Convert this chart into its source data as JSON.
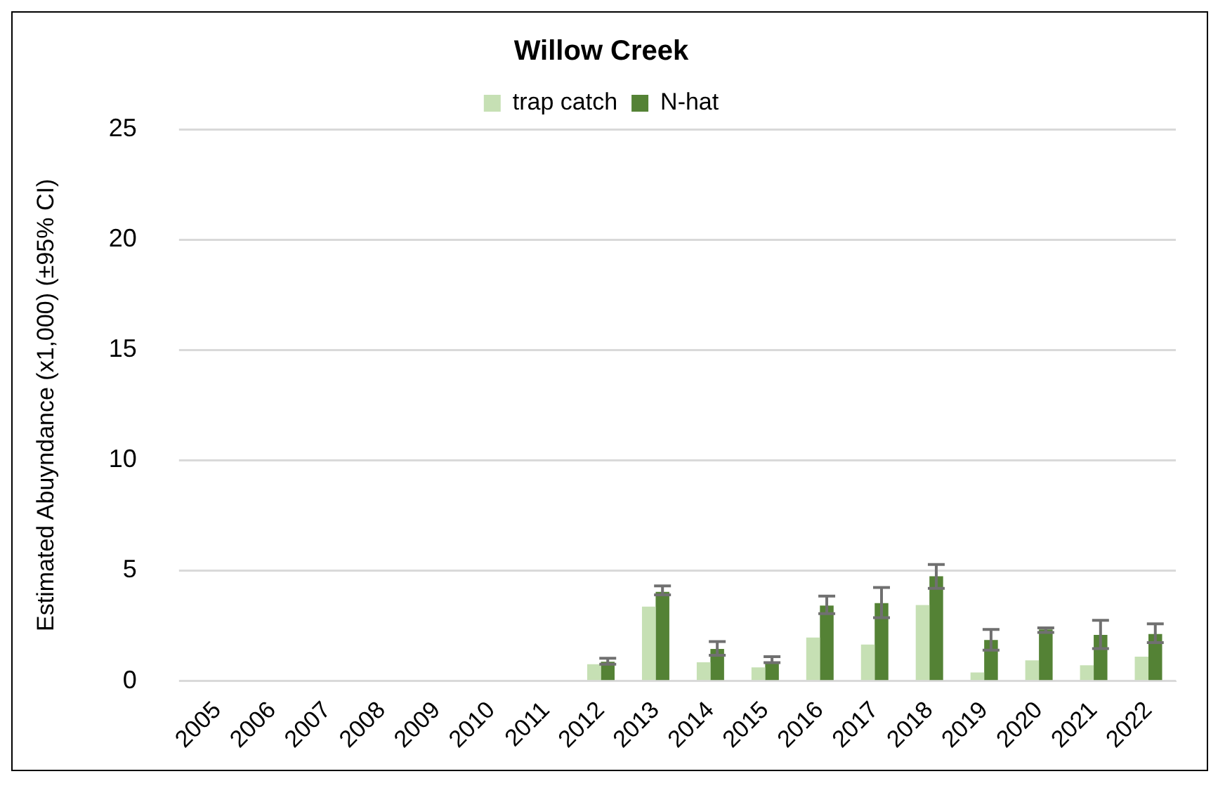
{
  "chart_data": {
    "type": "bar",
    "title": "Willow Creek",
    "ylabel": "Estimated Abuyndance (x1,000) (±95% CI)",
    "categories": [
      "2005",
      "2006",
      "2007",
      "2008",
      "2009",
      "2010",
      "2011",
      "2012",
      "2013",
      "2014",
      "2015",
      "2016",
      "2017",
      "2018",
      "2019",
      "2020",
      "2021",
      "2022"
    ],
    "series": [
      {
        "name": "trap catch",
        "color": "#c6e0b4",
        "values": [
          null,
          null,
          null,
          null,
          null,
          null,
          null,
          0.76,
          3.37,
          0.85,
          0.62,
          1.97,
          1.65,
          3.44,
          0.39,
          0.94,
          0.71,
          1.1
        ]
      },
      {
        "name": "N-hat",
        "color": "#548235",
        "values": [
          null,
          null,
          null,
          null,
          null,
          null,
          null,
          0.87,
          4.04,
          1.45,
          0.87,
          3.42,
          3.53,
          4.75,
          1.86,
          2.34,
          2.09,
          2.13
        ],
        "errors": [
          null,
          null,
          null,
          null,
          null,
          null,
          null,
          [
            0.76,
            1.03
          ],
          [
            3.9,
            4.31
          ],
          [
            1.17,
            1.79
          ],
          [
            0.83,
            1.1
          ],
          [
            3.05,
            3.85
          ],
          [
            2.87,
            4.24
          ],
          [
            4.2,
            5.28
          ],
          [
            1.4,
            2.34
          ],
          [
            2.2,
            2.41
          ],
          [
            1.47,
            2.75
          ],
          [
            1.74,
            2.59
          ]
        ]
      }
    ],
    "ylim": [
      0,
      25
    ],
    "yticks": [
      0,
      5,
      10,
      15,
      20,
      25
    ],
    "grid": "y",
    "legend": "top"
  }
}
